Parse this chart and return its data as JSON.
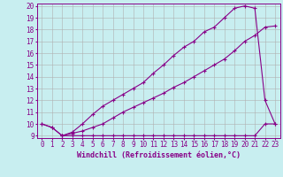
{
  "xlabel": "Windchill (Refroidissement éolien,°C)",
  "xlim": [
    -0.5,
    23.5
  ],
  "ylim": [
    8.8,
    20.2
  ],
  "yticks": [
    9,
    10,
    11,
    12,
    13,
    14,
    15,
    16,
    17,
    18,
    19,
    20
  ],
  "xticks": [
    0,
    1,
    2,
    3,
    4,
    5,
    6,
    7,
    8,
    9,
    10,
    11,
    12,
    13,
    14,
    15,
    16,
    17,
    18,
    19,
    20,
    21,
    22,
    23
  ],
  "bg_color": "#c8eef0",
  "line_color": "#880088",
  "grid_color": "#b0b0b0",
  "line1_x": [
    0,
    1,
    2,
    3,
    4,
    5,
    6,
    7,
    8,
    9,
    10,
    11,
    12,
    13,
    14,
    15,
    16,
    17,
    18,
    19,
    20,
    21,
    22,
    23
  ],
  "line1_y": [
    10.0,
    9.7,
    9.0,
    9.0,
    9.0,
    9.0,
    9.0,
    9.0,
    9.0,
    9.0,
    9.0,
    9.0,
    9.0,
    9.0,
    9.0,
    9.0,
    9.0,
    9.0,
    9.0,
    9.0,
    9.0,
    9.0,
    10.0,
    10.0
  ],
  "line2_x": [
    2,
    3,
    4,
    5,
    6,
    7,
    8,
    9,
    10,
    11,
    12,
    13,
    14,
    15,
    16,
    17,
    18,
    19,
    20,
    21,
    22,
    23
  ],
  "line2_y": [
    9.0,
    9.2,
    9.4,
    9.7,
    10.0,
    10.5,
    11.0,
    11.4,
    11.8,
    12.2,
    12.6,
    13.1,
    13.5,
    14.0,
    14.5,
    15.0,
    15.5,
    16.2,
    17.0,
    17.5,
    18.2,
    18.3
  ],
  "line3_x": [
    0,
    1,
    2,
    3,
    4,
    5,
    6,
    7,
    8,
    9,
    10,
    11,
    12,
    13,
    14,
    15,
    16,
    17,
    18,
    19,
    20,
    21,
    22,
    23
  ],
  "line3_y": [
    10.0,
    9.7,
    9.0,
    9.3,
    10.0,
    10.8,
    11.5,
    12.0,
    12.5,
    13.0,
    13.5,
    14.3,
    15.0,
    15.8,
    16.5,
    17.0,
    17.8,
    18.2,
    19.0,
    19.8,
    20.0,
    19.8,
    12.0,
    10.0
  ],
  "marker": "+",
  "markersize": 3,
  "linewidth": 0.8,
  "tick_fontsize": 5.5,
  "xlabel_fontsize": 6.0
}
